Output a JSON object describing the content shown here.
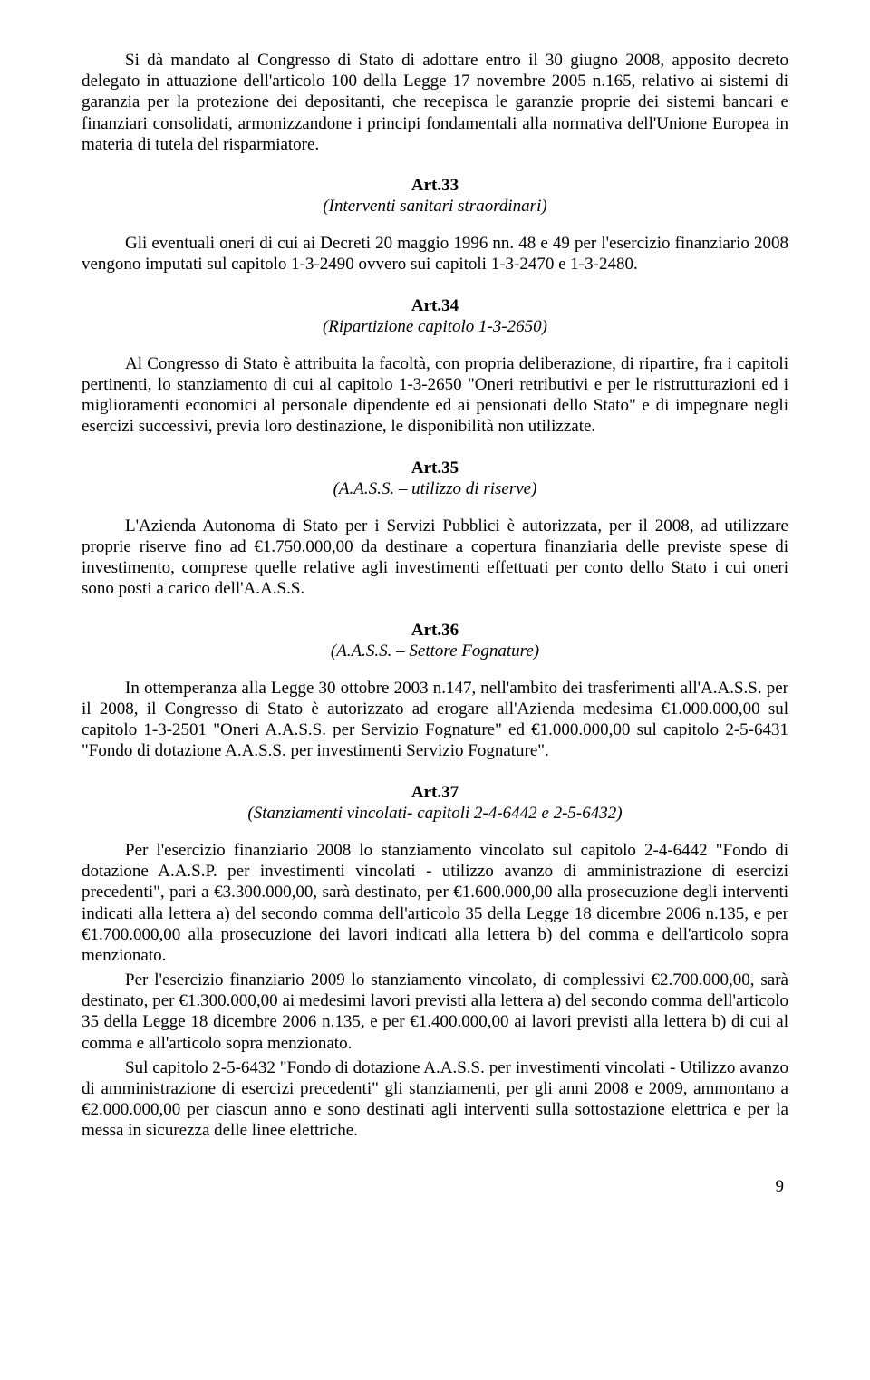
{
  "intro": {
    "p1": "Si dà mandato al Congresso di Stato di adottare entro il 30 giugno 2008, apposito decreto delegato in attuazione dell'articolo 100 della Legge 17 novembre 2005 n.165, relativo ai sistemi di garanzia per la protezione dei depositanti, che recepisca le garanzie proprie dei sistemi bancari e finanziari consolidati, armonizzandone i principi fondamentali alla normativa dell'Unione Europea in materia di tutela del risparmiatore."
  },
  "art33": {
    "title": "Art.33",
    "subtitle": "(Interventi sanitari straordinari)",
    "p1": "Gli eventuali oneri di cui ai Decreti 20 maggio 1996 nn. 48 e 49 per l'esercizio finanziario 2008 vengono imputati sul capitolo 1-3-2490 ovvero sui capitoli 1-3-2470 e 1-3-2480."
  },
  "art34": {
    "title": "Art.34",
    "subtitle": "(Ripartizione capitolo 1-3-2650)",
    "p1": "Al Congresso di Stato è attribuita la facoltà, con propria deliberazione, di ripartire, fra i capitoli pertinenti, lo stanziamento di cui al capitolo 1-3-2650 \"Oneri retributivi e per le ristrutturazioni ed i miglioramenti economici al personale dipendente ed ai pensionati dello Stato\" e di impegnare negli esercizi successivi, previa loro destinazione, le disponibilità non utilizzate."
  },
  "art35": {
    "title": "Art.35",
    "subtitle": "(A.A.S.S. – utilizzo di riserve)",
    "p1": "L'Azienda Autonoma di Stato per i Servizi Pubblici è autorizzata, per il 2008, ad utilizzare proprie riserve fino ad €1.750.000,00 da destinare a copertura finanziaria delle previste spese di investimento, comprese quelle relative agli investimenti effettuati per conto dello Stato i cui oneri sono posti a carico dell'A.A.S.S."
  },
  "art36": {
    "title": "Art.36",
    "subtitle": "(A.A.S.S. – Settore Fognature)",
    "p1": "In ottemperanza alla Legge 30 ottobre 2003 n.147, nell'ambito dei trasferimenti all'A.A.S.S. per il 2008, il Congresso di Stato è autorizzato ad erogare all'Azienda medesima  €1.000.000,00 sul capitolo 1-3-2501 \"Oneri A.A.S.S. per Servizio Fognature\" ed €1.000.000,00 sul capitolo 2-5-6431 \"Fondo di dotazione A.A.S.S. per investimenti Servizio Fognature\"."
  },
  "art37": {
    "title": "Art.37",
    "subtitle": "(Stanziamenti vincolati- capitoli 2-4-6442 e 2-5-6432)",
    "p1": "Per l'esercizio finanziario 2008 lo stanziamento vincolato sul capitolo 2-4-6442 \"Fondo di dotazione A.A.S.P. per investimenti vincolati - utilizzo avanzo di amministrazione di esercizi precedenti\", pari a €3.300.000,00, sarà destinato, per €1.600.000,00 alla prosecuzione degli interventi indicati alla lettera a) del secondo comma dell'articolo 35 della Legge 18 dicembre 2006 n.135, e per €1.700.000,00 alla prosecuzione dei lavori indicati alla lettera b) del comma e dell'articolo sopra menzionato.",
    "p2": "Per l'esercizio finanziario 2009 lo stanziamento vincolato, di complessivi €2.700.000,00, sarà destinato, per €1.300.000,00 ai medesimi lavori previsti alla lettera a) del secondo comma dell'articolo 35 della Legge 18 dicembre 2006 n.135, e per €1.400.000,00 ai lavori previsti alla lettera b) di cui al comma e all'articolo sopra menzionato.",
    "p3": "Sul capitolo 2-5-6432 \"Fondo di dotazione A.A.S.S. per investimenti vincolati - Utilizzo avanzo di amministrazione di esercizi precedenti\" gli stanziamenti, per gli anni 2008 e 2009, ammontano a €2.000.000,00 per ciascun anno e sono destinati agli interventi sulla sottostazione elettrica e per la messa in sicurezza delle linee elettriche."
  },
  "pageNumber": "9"
}
